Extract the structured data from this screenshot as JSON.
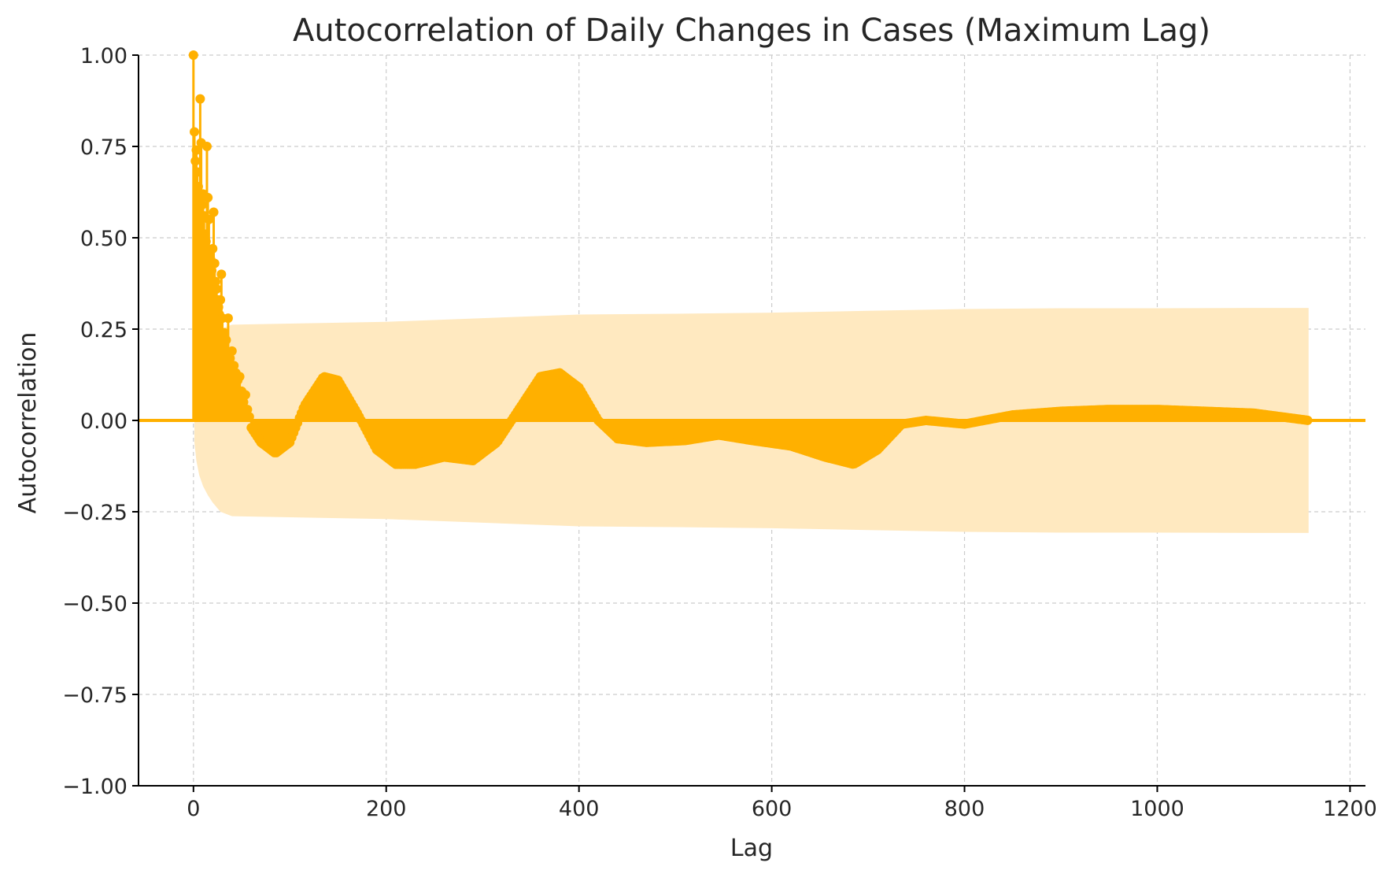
{
  "chart_data": {
    "type": "stem",
    "title": "Autocorrelation of Daily Changes in Cases (Maximum Lag)",
    "xlabel": "Lag",
    "ylabel": "Autocorrelation",
    "xlim": [
      -57,
      1216
    ],
    "ylim": [
      -1.0,
      1.0
    ],
    "x_ticks": [
      0,
      200,
      400,
      600,
      800,
      1000,
      1200
    ],
    "x_tick_labels": [
      "0",
      "200",
      "400",
      "600",
      "800",
      "1000",
      "1200"
    ],
    "y_ticks": [
      1.0,
      0.75,
      0.5,
      0.25,
      0.0,
      -0.25,
      -0.5,
      -0.75,
      -1.0
    ],
    "y_tick_labels": [
      "1.00",
      "0.75",
      "0.50",
      "0.25",
      "0.00",
      "−0.25",
      "−0.50",
      "−0.75",
      "−1.00"
    ],
    "grid": true,
    "max_lag": 1157,
    "colors": {
      "stem": "#FFB000",
      "band": "#FFE9C0",
      "grid": "#CCCCCC",
      "axis": "#000000",
      "text": "#262626"
    },
    "early_lags": {
      "x": [
        0,
        1,
        2,
        3,
        4,
        5,
        6,
        7,
        8,
        9,
        10,
        11,
        12,
        13,
        14,
        15,
        16,
        17,
        18,
        19,
        20,
        21,
        22,
        23,
        24,
        25,
        26,
        27,
        28,
        29,
        30,
        32,
        34,
        36,
        38,
        40,
        42,
        44,
        46,
        48,
        50,
        52,
        54,
        56,
        58,
        60
      ],
      "y": [
        1.0,
        0.79,
        0.71,
        0.74,
        0.68,
        0.64,
        0.61,
        0.88,
        0.76,
        0.59,
        0.62,
        0.56,
        0.51,
        0.49,
        0.75,
        0.61,
        0.55,
        0.46,
        0.44,
        0.41,
        0.47,
        0.57,
        0.43,
        0.38,
        0.36,
        0.33,
        0.31,
        0.29,
        0.33,
        0.4,
        0.28,
        0.24,
        0.22,
        0.28,
        0.17,
        0.19,
        0.15,
        0.13,
        0.11,
        0.12,
        0.08,
        0.05,
        0.07,
        0.03,
        0.01,
        -0.02
      ]
    },
    "curve_keypoints": {
      "x": [
        60,
        70,
        85,
        100,
        115,
        135,
        150,
        170,
        190,
        210,
        230,
        260,
        290,
        315,
        340,
        360,
        380,
        400,
        420,
        440,
        470,
        510,
        545,
        580,
        620,
        655,
        685,
        710,
        735,
        760,
        800,
        850,
        900,
        950,
        1000,
        1050,
        1100,
        1157
      ],
      "y": [
        -0.02,
        -0.06,
        -0.09,
        -0.06,
        0.04,
        0.12,
        0.11,
        0.02,
        -0.08,
        -0.12,
        -0.12,
        -0.1,
        -0.11,
        -0.06,
        0.04,
        0.12,
        0.13,
        0.09,
        0.0,
        -0.05,
        -0.06,
        -0.055,
        -0.04,
        -0.055,
        -0.07,
        -0.1,
        -0.12,
        -0.08,
        -0.01,
        0.0,
        -0.01,
        0.015,
        0.025,
        0.03,
        0.03,
        0.025,
        0.02,
        0.0
      ]
    },
    "confidence_band": {
      "x": [
        1,
        3,
        6,
        10,
        15,
        20,
        28,
        40,
        100,
        200,
        300,
        400,
        500,
        600,
        700,
        800,
        900,
        1000,
        1100,
        1157
      ],
      "upper": [
        0.06,
        0.11,
        0.15,
        0.18,
        0.205,
        0.225,
        0.25,
        0.262,
        0.265,
        0.27,
        0.28,
        0.29,
        0.292,
        0.295,
        0.3,
        0.305,
        0.307,
        0.307,
        0.308,
        0.308
      ]
    }
  }
}
